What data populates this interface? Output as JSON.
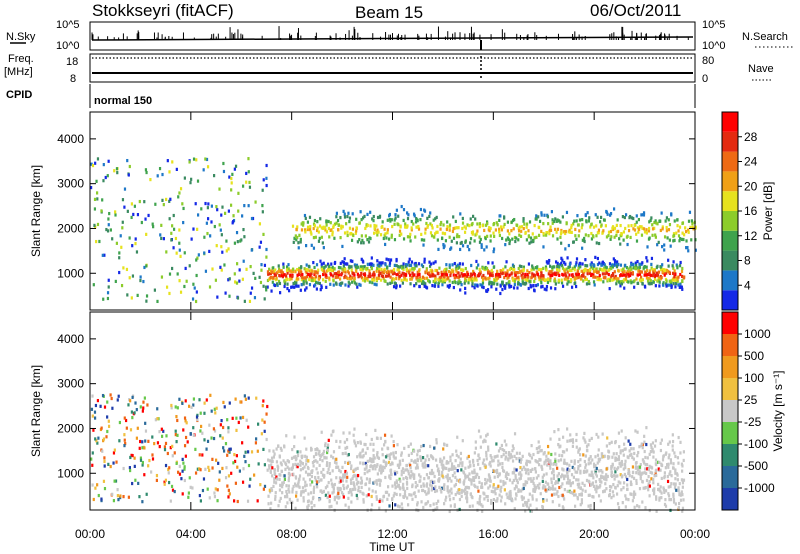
{
  "header": {
    "station": "Stokkseyri (fitACF)",
    "beam": "Beam 15",
    "date": "06/Oct/2011"
  },
  "strips": {
    "nsky_label": "N.Sky",
    "nsky_left_top": "10^5",
    "nsky_left_bottom": "10^0",
    "nsky_right_top": "10^5",
    "nsky_right_bottom": "10^0",
    "nsearch_label": "N.Search",
    "freq_label_1": "Freq.",
    "freq_label_2": "[MHz]",
    "freq_top": "18",
    "freq_bottom": "8",
    "nave_top": "80",
    "nave_bottom": "0",
    "nave_label": "Nave",
    "cpid_label": "CPID",
    "cpid_value": "normal 150"
  },
  "chart_data": [
    {
      "type": "heatmap",
      "panel": "power",
      "ylabel": "Slant Range [km]",
      "xlabel": "",
      "ylim": [
        180,
        4600
      ],
      "yticks": [
        "1000",
        "2000",
        "3000",
        "4000"
      ],
      "ytick_values": [
        1000,
        2000,
        3000,
        4000
      ],
      "xlim": [
        0,
        24
      ],
      "colorbar": {
        "label": "Power [dB]",
        "ticks": [
          "4",
          "8",
          "12",
          "16",
          "20",
          "24",
          "28"
        ],
        "colors": [
          "#1428e6",
          "#1e78c8",
          "#3a8a60",
          "#3fa34d",
          "#8ccc2a",
          "#e6e21e",
          "#f0a016",
          "#ee6a14",
          "#e42a10",
          "#ff0000"
        ]
      },
      "features": [
        {
          "name": "main echo band",
          "start_ut": 7.0,
          "end_ut": 23.5,
          "center_km": 1000,
          "peak_db": 28
        },
        {
          "name": "upper scatter",
          "start_ut": 8.0,
          "end_ut": 24.0,
          "center_km": 2000,
          "peak_db": 16
        }
      ]
    },
    {
      "type": "heatmap",
      "panel": "velocity",
      "ylabel": "Slant Range [km]",
      "xlabel": "Time UT",
      "ylim": [
        180,
        4600
      ],
      "yticks": [
        "1000",
        "2000",
        "3000",
        "4000"
      ],
      "ytick_values": [
        1000,
        2000,
        3000,
        4000
      ],
      "xlim": [
        0,
        24
      ],
      "xticks": [
        "00:00",
        "04:00",
        "08:00",
        "12:00",
        "16:00",
        "20:00",
        "00:00"
      ],
      "xtick_values": [
        0,
        4,
        8,
        12,
        16,
        20,
        24
      ],
      "colorbar": {
        "label": "Velocity [m s⁻¹]",
        "ticks": [
          "1000",
          "500",
          "100",
          "25",
          "-25",
          "-100",
          "-500",
          "-1000"
        ],
        "colors": [
          "#1e3caa",
          "#2a6a9a",
          "#2f8a6e",
          "#66c84a",
          "#c8c8c8",
          "#f0c040",
          "#f09a1e",
          "#f06414",
          "#ff0000"
        ]
      },
      "features": [
        {
          "name": "ground scatter band",
          "start_ut": 7.0,
          "end_ut": 23.5,
          "center_km": 1000,
          "velocity": 0
        }
      ]
    }
  ]
}
